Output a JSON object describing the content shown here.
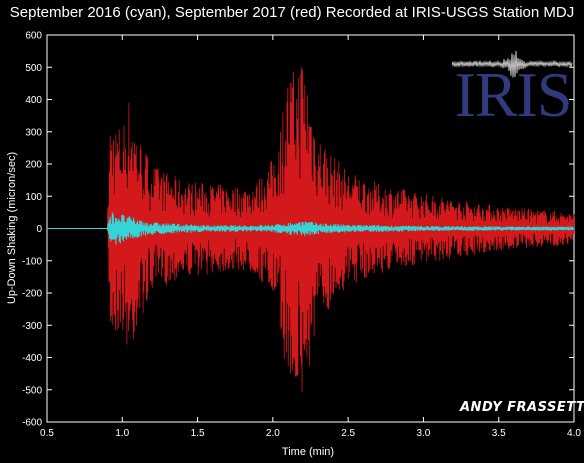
{
  "chart_data": {
    "type": "line",
    "title": "September 2016 (cyan), September 2017 (red) Recorded at IRIS-USGS Station MDJ",
    "xlabel": "Time (min)",
    "ylabel": "Up-Down Shaking (micron/sec)",
    "xlim": [
      0.5,
      4.0
    ],
    "ylim": [
      -600,
      600
    ],
    "xticks": [
      "0.5",
      "1.0",
      "1.5",
      "2.0",
      "2.5",
      "3.0",
      "3.5",
      "4.0"
    ],
    "yticks": [
      "600",
      "500",
      "400",
      "300",
      "200",
      "100",
      "0",
      "-100",
      "-200",
      "-300",
      "-400",
      "-500",
      "-600"
    ],
    "grid": false,
    "series": [
      {
        "name": "September 2017",
        "color": "#d4191c",
        "envelope": {
          "x": [
            0.9,
            0.92,
            1.0,
            1.05,
            1.1,
            1.2,
            1.4,
            1.6,
            1.8,
            1.9,
            2.0,
            2.05,
            2.1,
            2.15,
            2.2,
            2.25,
            2.3,
            2.4,
            2.5,
            2.7,
            3.0,
            3.5,
            4.0
          ],
          "y": [
            0,
            340,
            320,
            420,
            300,
            200,
            150,
            140,
            130,
            150,
            220,
            330,
            480,
            500,
            560,
            420,
            300,
            230,
            180,
            140,
            110,
            70,
            50
          ]
        }
      },
      {
        "name": "September 2016",
        "color": "#35d4d6",
        "envelope": {
          "x": [
            0.9,
            0.92,
            1.0,
            1.1,
            1.2,
            1.4,
            1.6,
            1.8,
            2.0,
            2.2,
            2.3,
            2.5,
            3.0,
            4.0
          ],
          "y": [
            0,
            55,
            45,
            30,
            20,
            14,
            10,
            10,
            12,
            25,
            18,
            12,
            8,
            5
          ]
        }
      }
    ]
  },
  "logo": {
    "name": "IRIS"
  },
  "signature": "ANDY FRASSETTO"
}
